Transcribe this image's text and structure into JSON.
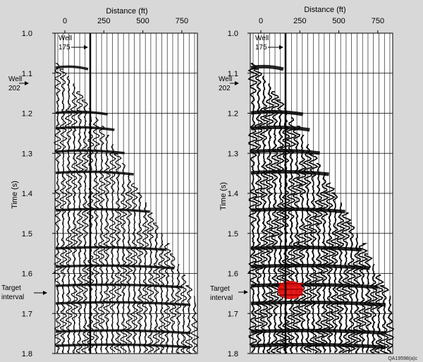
{
  "colors": {
    "background": "#d8d8d8",
    "panel": "#ffffff",
    "trace": "#000000",
    "highlight": "#e01010"
  },
  "x_axis": {
    "title": "Distance (ft)",
    "ticks": [
      "0",
      "250",
      "500",
      "750"
    ]
  },
  "y_axis": {
    "title": "Time (s)",
    "ticks": [
      "1.0",
      "1.1",
      "1.2",
      "1.3",
      "1.4",
      "1.5",
      "1.6",
      "1.7",
      "1.8"
    ]
  },
  "annotations": {
    "well_175": [
      "Well",
      "175"
    ],
    "well_202": [
      "Well",
      "202"
    ],
    "target_interval": [
      "Target",
      "interval"
    ]
  },
  "panels": [
    {
      "id": "left",
      "highlighted": false
    },
    {
      "id": "right",
      "highlighted": true
    }
  ],
  "figure_id": "QA19598(a)c"
}
